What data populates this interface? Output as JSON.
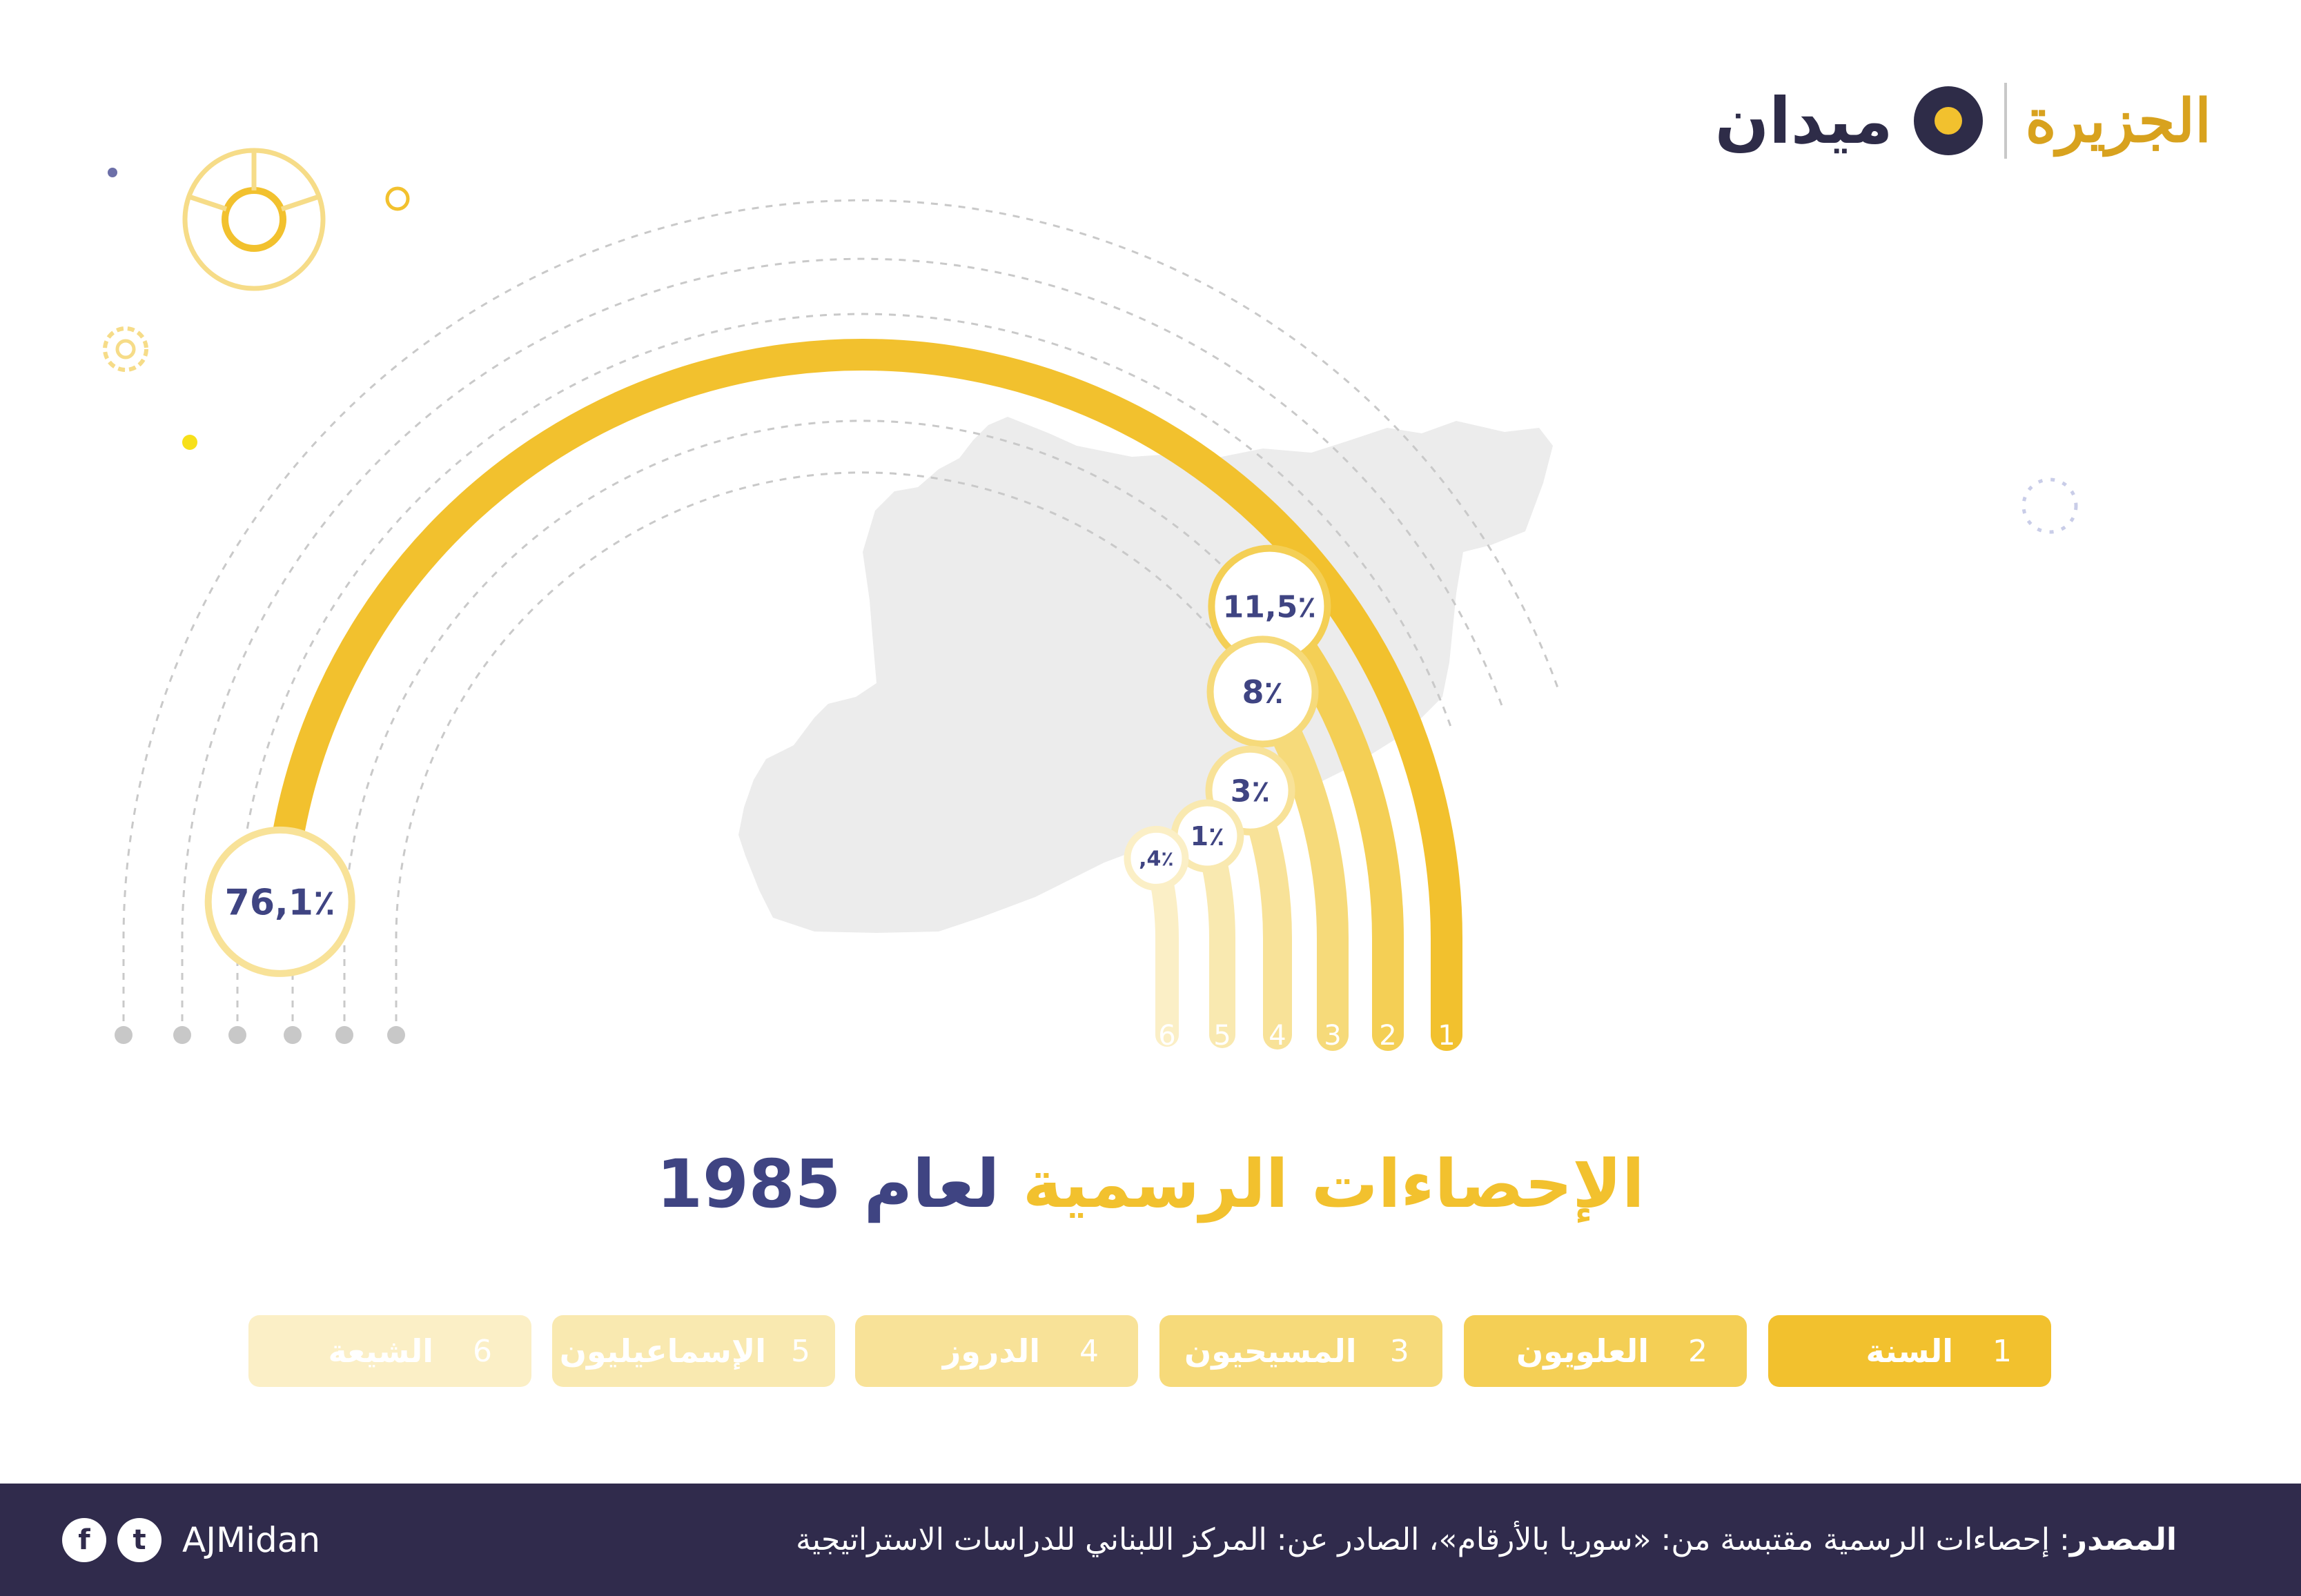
{
  "brand": {
    "name": "ميدان",
    "logo_text": "الجزيرة",
    "accent_color": "#f2c12e",
    "dark_color": "#3f4482"
  },
  "title": {
    "accent": "الإحصاءات الرسمية",
    "main": "لعام 1985"
  },
  "chart_data": {
    "type": "radial-bar",
    "title": "الإحصاءات الرسمية لعام 1985",
    "categories": [
      "السنة",
      "العلويون",
      "المسيحيون",
      "الدروز",
      "الإسماعيليون",
      "الشيعة"
    ],
    "ranks": [
      "1",
      "2",
      "3",
      "4",
      "5",
      "6"
    ],
    "values": [
      76.1,
      11.5,
      8,
      3,
      1,
      0.4
    ],
    "value_labels": [
      "76,1",
      "11,5",
      "8",
      "3",
      "1",
      ",4"
    ],
    "unit": "٪",
    "colors": [
      "#f2c12e",
      "#f4cf55",
      "#f6da7a",
      "#f8e298",
      "#f9e9b0",
      "#fbefc6"
    ]
  },
  "legend": {
    "items": [
      {
        "num": "1",
        "name": "السنة",
        "color": "#f2c12e"
      },
      {
        "num": "2",
        "name": "العلويون",
        "color": "#f4cf55"
      },
      {
        "num": "3",
        "name": "المسيحيون",
        "color": "#f6da7a"
      },
      {
        "num": "4",
        "name": "الدروز",
        "color": "#f8e298"
      },
      {
        "num": "5",
        "name": "الإسماعيليون",
        "color": "#f9e9b0"
      },
      {
        "num": "6",
        "name": "الشيعة",
        "color": "#fbefc6"
      }
    ]
  },
  "footer": {
    "source_label": "المصدر",
    "source_text": ": إحصاءات الرسمية مقتبسة من: «سوريا بالأرقام»، الصادر عن: المركز اللبناني للدراسات الاستراتيجية",
    "handle": "AJMidan",
    "facebook_glyph": "f",
    "twitter_glyph": "t"
  }
}
